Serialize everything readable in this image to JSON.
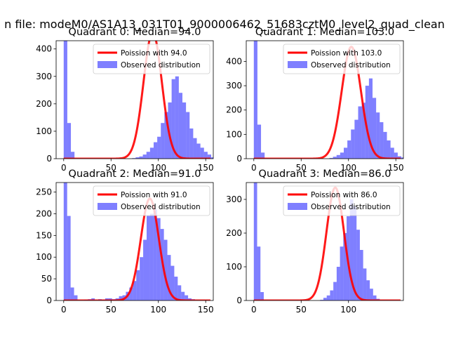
{
  "figure": {
    "suptitle": "n file: modeM0/AS1A13_031T01_9000006462_51683cztM0_level2_quad_clean"
  },
  "legend": {
    "fit_prefix": "Poission with",
    "observed": "Observed distribution"
  },
  "colors": {
    "fit": "#ff0000",
    "observed": "#0000ff"
  },
  "chart_data": [
    {
      "type": "bar",
      "title": "Quadrant 0: Median=94.0",
      "median": 94.0,
      "peak": 460,
      "xlim": [
        -8,
        158
      ],
      "ylim": [
        0,
        430
      ],
      "xticks": [
        0,
        50,
        100,
        150
      ],
      "yticks": [
        0,
        100,
        200,
        300,
        400
      ],
      "fit_label": "Poission with 94.0",
      "bin_edges_start": 0,
      "bin_width": 3.8,
      "counts": [
        430,
        130,
        25,
        0,
        0,
        0,
        0,
        0,
        0,
        0,
        0,
        0,
        0,
        0,
        0,
        0,
        0,
        0,
        0,
        2,
        5,
        8,
        15,
        25,
        40,
        60,
        80,
        130,
        170,
        205,
        290,
        300,
        240,
        205,
        170,
        110,
        75,
        55,
        40,
        25,
        15,
        5,
        0,
        0
      ],
      "series": [
        {
          "name": "Poission with 94.0"
        },
        {
          "name": "Observed distribution"
        }
      ]
    },
    {
      "type": "bar",
      "title": "Quadrant 1: Median=103.0",
      "median": 103.0,
      "peak": 460,
      "xlim": [
        -8,
        158
      ],
      "ylim": [
        0,
        485
      ],
      "xticks": [
        0,
        50,
        100,
        150
      ],
      "yticks": [
        0,
        100,
        200,
        300,
        400
      ],
      "fit_label": "Poission with 103.0",
      "bin_edges_start": 0,
      "bin_width": 3.8,
      "counts": [
        485,
        140,
        25,
        0,
        0,
        0,
        0,
        0,
        0,
        0,
        0,
        0,
        0,
        0,
        0,
        0,
        0,
        0,
        0,
        0,
        0,
        3,
        8,
        15,
        25,
        45,
        75,
        120,
        160,
        215,
        230,
        300,
        330,
        250,
        190,
        150,
        110,
        75,
        45,
        25,
        10,
        5,
        0,
        0
      ],
      "series": [
        {
          "name": "Poission with 103.0"
        },
        {
          "name": "Observed distribution"
        }
      ]
    },
    {
      "type": "bar",
      "title": "Quadrant 2: Median=91.0",
      "median": 91.0,
      "peak": 235,
      "xlim": [
        -8,
        158
      ],
      "ylim": [
        0,
        272
      ],
      "xticks": [
        0,
        50,
        100,
        150
      ],
      "yticks": [
        0,
        50,
        100,
        150,
        200,
        250
      ],
      "fit_label": "Poission with 91.0",
      "bin_edges_start": 0,
      "bin_width": 3.65,
      "counts": [
        272,
        195,
        30,
        12,
        0,
        0,
        2,
        3,
        5,
        0,
        3,
        2,
        5,
        5,
        3,
        5,
        10,
        12,
        20,
        30,
        45,
        70,
        100,
        140,
        195,
        200,
        210,
        190,
        165,
        140,
        105,
        80,
        55,
        35,
        20,
        12,
        5,
        3,
        0,
        0,
        0
      ],
      "series": [
        {
          "name": "Poission with 91.0"
        },
        {
          "name": "Observed distribution"
        }
      ]
    },
    {
      "type": "bar",
      "title": "Quadrant 3: Median=86.0",
      "median": 86.0,
      "peak": 335,
      "xlim": [
        -8,
        158
      ],
      "ylim": [
        0,
        350
      ],
      "xticks": [
        0,
        50,
        100
      ],
      "yticks": [
        0,
        100,
        200,
        300
      ],
      "fit_label": "Poission with 86.0",
      "bin_edges_start": 0,
      "bin_width": 3.5,
      "counts": [
        350,
        160,
        25,
        0,
        0,
        0,
        0,
        0,
        0,
        0,
        0,
        0,
        0,
        0,
        0,
        0,
        0,
        0,
        0,
        0,
        2,
        8,
        15,
        30,
        55,
        100,
        160,
        200,
        250,
        300,
        280,
        210,
        150,
        95,
        60,
        35,
        15,
        5,
        0,
        0,
        0
      ],
      "series": [
        {
          "name": "Poission with 86.0"
        },
        {
          "name": "Observed distribution"
        }
      ]
    }
  ]
}
